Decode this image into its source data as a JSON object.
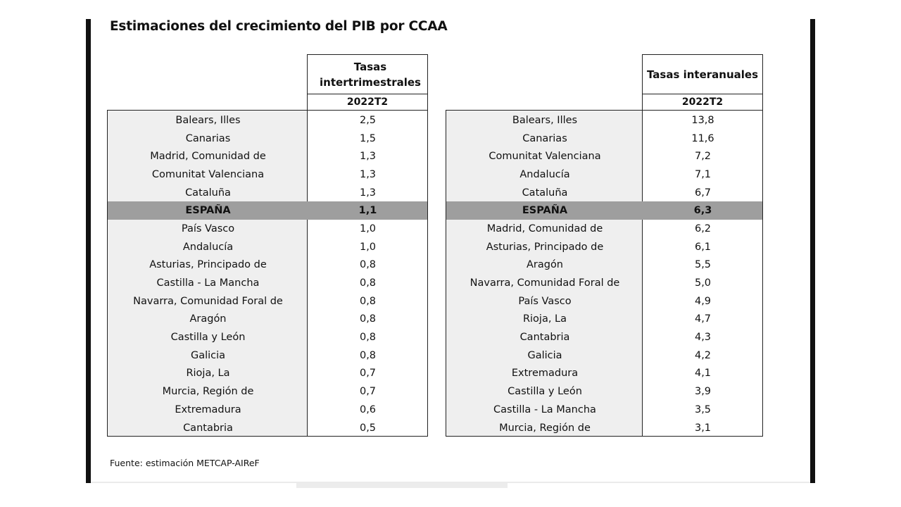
{
  "title": "Estimaciones del crecimiento del PIB por CCAA",
  "source": "Fuente: estimación METCAP-AIReF",
  "left_table": {
    "header": "Tasas intertrimestrales",
    "period": "2022T2",
    "rows": [
      {
        "region": "Balears, Illes",
        "value": "2,5"
      },
      {
        "region": "Canarias",
        "value": "1,5"
      },
      {
        "region": "Madrid, Comunidad de",
        "value": "1,3"
      },
      {
        "region": "Comunitat Valenciana",
        "value": "1,3"
      },
      {
        "region": "Cataluña",
        "value": "1,3"
      },
      {
        "region": "ESPAÑA",
        "value": "1,1"
      },
      {
        "region": "País Vasco",
        "value": "1,0"
      },
      {
        "region": "Andalucía",
        "value": "1,0"
      },
      {
        "region": "Asturias, Principado de",
        "value": "0,8"
      },
      {
        "region": "Castilla - La Mancha",
        "value": "0,8"
      },
      {
        "region": "Navarra, Comunidad Foral de",
        "value": "0,8"
      },
      {
        "region": "Aragón",
        "value": "0,8"
      },
      {
        "region": "Castilla y León",
        "value": "0,8"
      },
      {
        "region": "Galicia",
        "value": "0,8"
      },
      {
        "region": "Rioja, La",
        "value": "0,7"
      },
      {
        "region": "Murcia, Región de",
        "value": "0,7"
      },
      {
        "region": "Extremadura",
        "value": "0,6"
      },
      {
        "region": "Cantabria",
        "value": "0,5"
      }
    ]
  },
  "right_table": {
    "header": "Tasas interanuales",
    "period": "2022T2",
    "rows": [
      {
        "region": "Balears, Illes",
        "value": "13,8"
      },
      {
        "region": "Canarias",
        "value": "11,6"
      },
      {
        "region": "Comunitat Valenciana",
        "value": "7,2"
      },
      {
        "region": "Andalucía",
        "value": "7,1"
      },
      {
        "region": "Cataluña",
        "value": "6,7"
      },
      {
        "region": "ESPAÑA",
        "value": "6,3"
      },
      {
        "region": "Madrid, Comunidad de",
        "value": "6,2"
      },
      {
        "region": "Asturias, Principado de",
        "value": "6,1"
      },
      {
        "region": "Aragón",
        "value": "5,5"
      },
      {
        "region": "Navarra, Comunidad Foral de",
        "value": "5,0"
      },
      {
        "region": "País Vasco",
        "value": "4,9"
      },
      {
        "region": "Rioja, La",
        "value": "4,7"
      },
      {
        "region": "Cantabria",
        "value": "4,3"
      },
      {
        "region": "Galicia",
        "value": "4,2"
      },
      {
        "region": "Extremadura",
        "value": "4,1"
      },
      {
        "region": "Castilla y León",
        "value": "3,9"
      },
      {
        "region": "Castilla - La Mancha",
        "value": "3,5"
      },
      {
        "region": "Murcia, Región de",
        "value": "3,1"
      }
    ]
  },
  "highlight_region": "ESPAÑA",
  "colors": {
    "highlight": "#9e9e9e",
    "name_column": "#efefef"
  }
}
